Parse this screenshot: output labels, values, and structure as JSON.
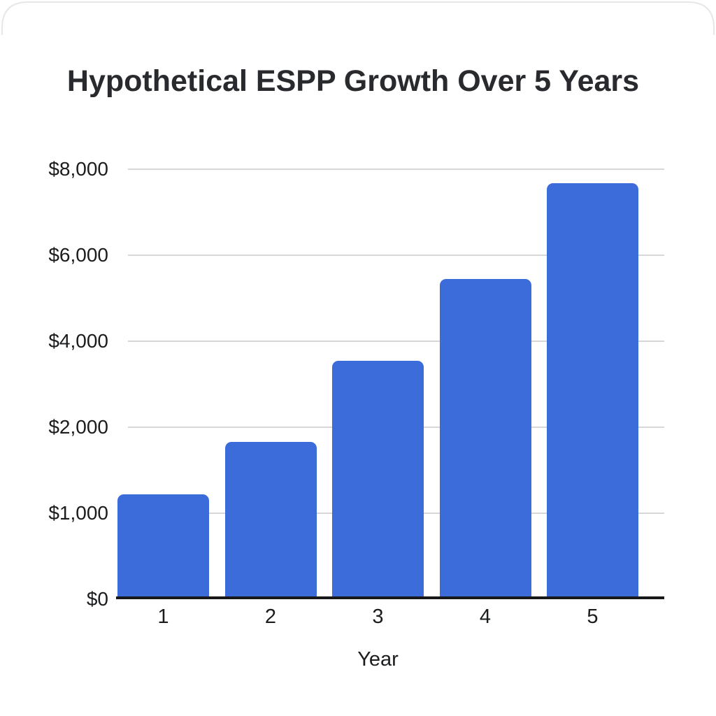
{
  "page": {
    "background": "#ffffff",
    "card_top_border_color": "#e7e7e7"
  },
  "chart_data": {
    "type": "bar",
    "title": "Hypothetical ESPP Growth Over 5 Years",
    "xlabel": "Year",
    "ylabel": "",
    "categories": [
      "1",
      "2",
      "3",
      "4",
      "5"
    ],
    "values": [
      1220,
      1830,
      3550,
      5450,
      7670
    ],
    "value_unit": "USD",
    "y_ticks": [
      {
        "label": "$0",
        "value": 0
      },
      {
        "label": "$1,000",
        "value": 1000
      },
      {
        "label": "$2,000",
        "value": 2000
      },
      {
        "label": "$4,000",
        "value": 4000
      },
      {
        "label": "$6,000",
        "value": 6000
      },
      {
        "label": "$8,000",
        "value": 8000
      }
    ],
    "y_scale_note": "tick labels are evenly spaced on screen; values interpolate piecewise-linearly between adjacent ticks",
    "grid": true,
    "legend_position": "none",
    "colors": {
      "bar": "#3c6cda",
      "gridline": "#d7d7d7",
      "axis": "#17181a",
      "title_text": "#282a2e",
      "label_text": "#1b1c1e"
    }
  }
}
